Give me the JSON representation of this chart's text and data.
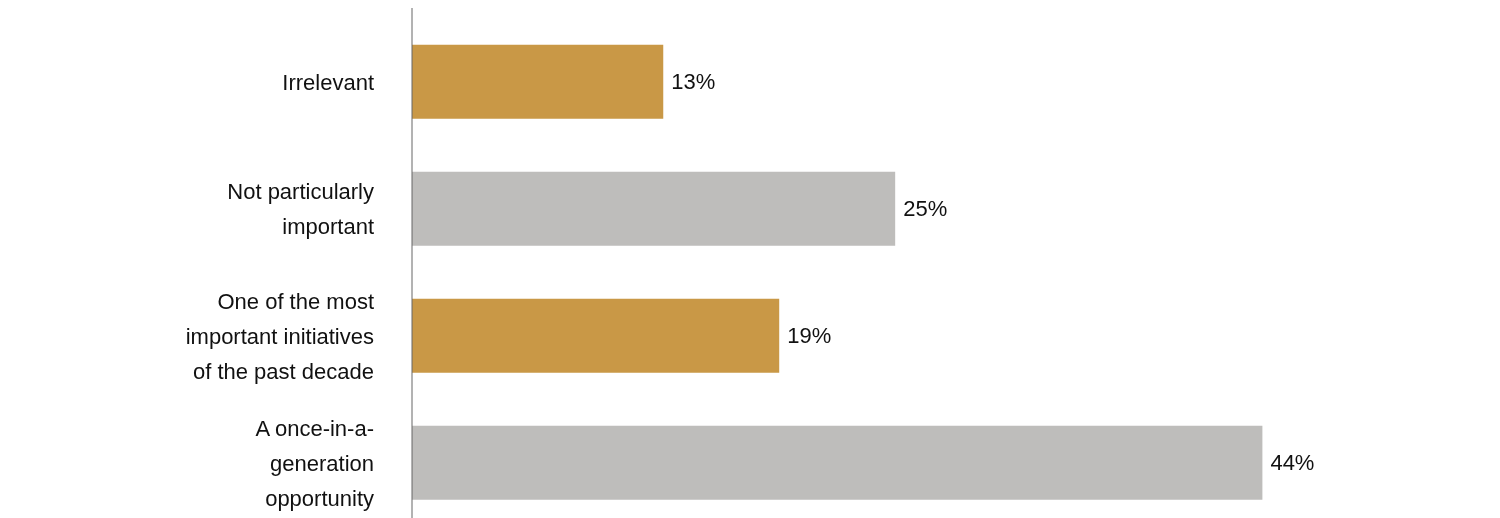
{
  "chart_data": {
    "type": "bar",
    "orientation": "horizontal",
    "categories": [
      "Irrelevant",
      "Not particularly important",
      "One of the most important initiatives of the past decade",
      "A once-in-a-generation opportunity"
    ],
    "values": [
      13,
      25,
      19,
      44
    ],
    "colors": [
      "#c99846",
      "#bebdbb",
      "#c99846",
      "#bebdbb"
    ],
    "value_labels": [
      "13%",
      "25%",
      "19%",
      "44%"
    ],
    "grid": false,
    "legend": false
  }
}
